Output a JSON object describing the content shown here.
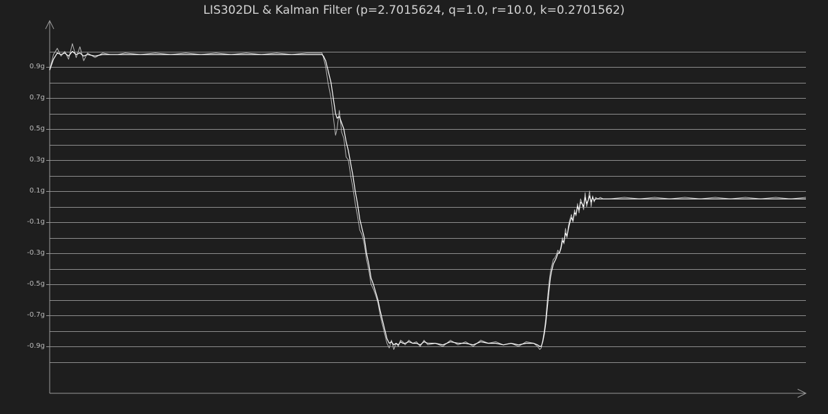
{
  "chart_data": {
    "type": "line",
    "title": "LIS302DL & Kalman Filter (p=2.7015624, q=1.0, r=10.0, k=0.2701562)",
    "xlabel": "",
    "ylabel": "",
    "ylim": [
      -1.2,
      1.1
    ],
    "xlim": [
      0,
      1000
    ],
    "yticks": [
      0.9,
      0.7,
      0.5,
      0.3,
      0.1,
      -0.1,
      -0.3,
      -0.5,
      -0.7,
      -0.9
    ],
    "ytick_labels": [
      "0.9g",
      "0.7g",
      "0.5g",
      "0.3g",
      "0.1g",
      "-0.1g",
      "-0.3g",
      "-0.5g",
      "-0.7g",
      "-0.9g"
    ],
    "grid": true,
    "legend": "none",
    "colors": {
      "background": "#1e1e1e",
      "grid": "#8e8e8e",
      "axis": "#9a9a9a",
      "raw_series": "#b9b9b9",
      "filtered_series": "#ffffff",
      "title": "#d4d4d4",
      "tick_label": "#bdbdbd"
    },
    "series": [
      {
        "x": [
          0,
          5,
          10,
          15,
          20,
          25,
          30,
          35,
          40,
          45,
          50,
          60,
          70,
          80,
          90,
          100,
          120,
          140,
          160,
          180,
          200,
          220,
          240,
          260,
          280,
          300,
          320,
          340,
          355,
          360,
          362,
          365,
          368,
          372,
          375,
          378,
          380,
          383,
          386,
          389,
          392,
          395,
          398,
          401,
          404,
          407,
          410,
          413,
          416,
          419,
          422,
          425,
          428,
          431,
          434,
          437,
          440,
          443,
          446,
          449,
          452,
          455,
          458,
          461,
          464,
          467,
          470,
          475,
          480,
          485,
          490,
          495,
          500,
          510,
          520,
          530,
          540,
          550,
          560,
          570,
          580,
          590,
          600,
          610,
          620,
          630,
          640,
          645,
          648,
          650,
          652,
          654,
          656,
          658,
          660,
          662,
          664,
          666,
          668,
          670,
          672,
          674,
          676,
          678,
          680,
          682,
          684,
          686,
          688,
          690,
          692,
          694,
          696,
          698,
          700,
          702,
          704,
          706,
          708,
          710,
          712,
          714,
          716,
          718,
          720,
          722,
          725,
          728,
          732,
          740,
          760,
          780,
          800,
          820,
          840,
          860,
          880,
          900,
          920,
          940,
          960,
          980,
          1000
        ],
        "values": [
          0.88,
          0.98,
          1.02,
          0.97,
          1.0,
          0.95,
          1.05,
          0.96,
          1.03,
          0.94,
          0.99,
          0.96,
          0.99,
          0.98,
          0.98,
          0.99,
          0.98,
          0.99,
          0.98,
          0.99,
          0.98,
          0.99,
          0.98,
          0.99,
          0.98,
          0.99,
          0.98,
          0.99,
          0.99,
          0.99,
          0.96,
          0.9,
          0.8,
          0.7,
          0.58,
          0.46,
          0.5,
          0.62,
          0.48,
          0.44,
          0.32,
          0.3,
          0.2,
          0.12,
          0.02,
          -0.06,
          -0.15,
          -0.18,
          -0.24,
          -0.34,
          -0.41,
          -0.5,
          -0.53,
          -0.57,
          -0.62,
          -0.7,
          -0.76,
          -0.82,
          -0.88,
          -0.91,
          -0.86,
          -0.92,
          -0.88,
          -0.9,
          -0.86,
          -0.87,
          -0.89,
          -0.86,
          -0.88,
          -0.87,
          -0.9,
          -0.86,
          -0.89,
          -0.88,
          -0.9,
          -0.86,
          -0.89,
          -0.87,
          -0.9,
          -0.86,
          -0.88,
          -0.87,
          -0.89,
          -0.88,
          -0.9,
          -0.87,
          -0.88,
          -0.9,
          -0.92,
          -0.91,
          -0.86,
          -0.8,
          -0.72,
          -0.6,
          -0.5,
          -0.42,
          -0.38,
          -0.34,
          -0.33,
          -0.31,
          -0.28,
          -0.3,
          -0.26,
          -0.2,
          -0.24,
          -0.14,
          -0.2,
          -0.12,
          -0.08,
          -0.05,
          -0.1,
          -0.02,
          -0.06,
          0.02,
          -0.04,
          0.05,
          0.02,
          -0.02,
          0.09,
          0.0,
          0.04,
          0.1,
          0.0,
          0.07,
          0.03,
          0.06,
          0.05,
          0.06,
          0.05,
          0.05,
          0.06,
          0.05,
          0.06,
          0.05,
          0.06,
          0.05,
          0.06,
          0.05,
          0.06,
          0.05,
          0.06,
          0.05,
          0.06
        ]
      },
      {
        "x": [
          0,
          5,
          10,
          15,
          20,
          25,
          30,
          35,
          40,
          45,
          50,
          60,
          70,
          80,
          90,
          100,
          120,
          140,
          160,
          180,
          200,
          220,
          240,
          260,
          280,
          300,
          320,
          340,
          355,
          360,
          362,
          365,
          368,
          372,
          375,
          378,
          380,
          383,
          386,
          389,
          392,
          395,
          398,
          401,
          404,
          407,
          410,
          413,
          416,
          419,
          422,
          425,
          428,
          431,
          434,
          437,
          440,
          443,
          446,
          449,
          452,
          455,
          458,
          461,
          464,
          467,
          470,
          475,
          480,
          485,
          490,
          495,
          500,
          510,
          520,
          530,
          540,
          550,
          560,
          570,
          580,
          590,
          600,
          610,
          620,
          630,
          640,
          645,
          648,
          650,
          652,
          654,
          656,
          658,
          660,
          662,
          664,
          666,
          668,
          670,
          672,
          674,
          676,
          678,
          680,
          682,
          684,
          686,
          688,
          690,
          692,
          694,
          696,
          698,
          700,
          702,
          704,
          706,
          708,
          710,
          712,
          714,
          716,
          718,
          720,
          722,
          725,
          728,
          732,
          740,
          760,
          780,
          800,
          820,
          840,
          860,
          880,
          900,
          920,
          940,
          960,
          980,
          1000
        ],
        "values": [
          0.88,
          0.95,
          0.99,
          0.98,
          0.99,
          0.97,
          1.0,
          0.98,
          0.99,
          0.97,
          0.98,
          0.97,
          0.98,
          0.98,
          0.98,
          0.98,
          0.98,
          0.98,
          0.98,
          0.98,
          0.98,
          0.98,
          0.98,
          0.98,
          0.98,
          0.98,
          0.98,
          0.98,
          0.98,
          0.98,
          0.97,
          0.94,
          0.88,
          0.8,
          0.7,
          0.6,
          0.57,
          0.58,
          0.54,
          0.5,
          0.42,
          0.36,
          0.28,
          0.2,
          0.1,
          0.02,
          -0.08,
          -0.14,
          -0.2,
          -0.3,
          -0.37,
          -0.46,
          -0.5,
          -0.55,
          -0.6,
          -0.67,
          -0.73,
          -0.79,
          -0.85,
          -0.88,
          -0.87,
          -0.89,
          -0.88,
          -0.89,
          -0.87,
          -0.88,
          -0.88,
          -0.87,
          -0.88,
          -0.88,
          -0.89,
          -0.87,
          -0.88,
          -0.88,
          -0.89,
          -0.87,
          -0.88,
          -0.88,
          -0.89,
          -0.87,
          -0.88,
          -0.88,
          -0.89,
          -0.88,
          -0.89,
          -0.88,
          -0.88,
          -0.89,
          -0.9,
          -0.9,
          -0.87,
          -0.82,
          -0.75,
          -0.65,
          -0.55,
          -0.46,
          -0.41,
          -0.37,
          -0.35,
          -0.33,
          -0.3,
          -0.3,
          -0.27,
          -0.22,
          -0.23,
          -0.17,
          -0.19,
          -0.14,
          -0.1,
          -0.07,
          -0.09,
          -0.04,
          -0.05,
          0.0,
          -0.02,
          0.03,
          0.02,
          0.0,
          0.06,
          0.02,
          0.04,
          0.07,
          0.03,
          0.06,
          0.04,
          0.05,
          0.05,
          0.05,
          0.05,
          0.05,
          0.05,
          0.05,
          0.05,
          0.05,
          0.05,
          0.05,
          0.05,
          0.05,
          0.05,
          0.05,
          0.05,
          0.05,
          0.05
        ]
      }
    ]
  }
}
